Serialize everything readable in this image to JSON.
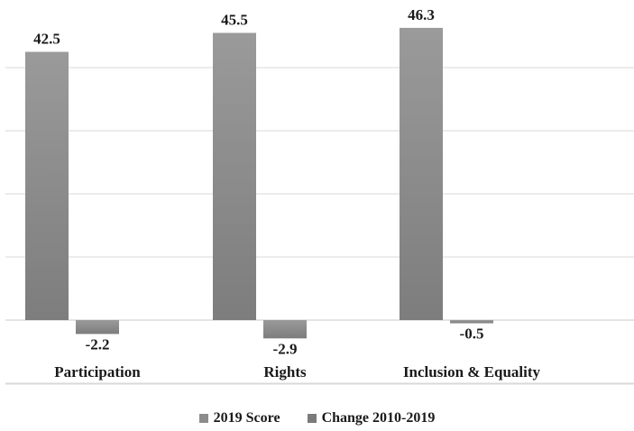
{
  "chart_data": {
    "type": "bar",
    "categories": [
      "Participation",
      "Rights",
      "Inclusion & Equality"
    ],
    "series": [
      {
        "name": "2019 Score",
        "values": [
          42.5,
          45.5,
          46.3
        ],
        "color": "#8c8c8c"
      },
      {
        "name": "Change 2010-2019",
        "values": [
          -2.2,
          -2.9,
          -0.5
        ],
        "color": "#7a7a7a"
      }
    ],
    "data_labels": [
      [
        "42.5",
        "45.5",
        "46.3"
      ],
      [
        "-2.2",
        "-2.9",
        "-0.5"
      ]
    ],
    "ylim": [
      -10,
      50
    ],
    "grid": true,
    "legend": "bottom"
  }
}
